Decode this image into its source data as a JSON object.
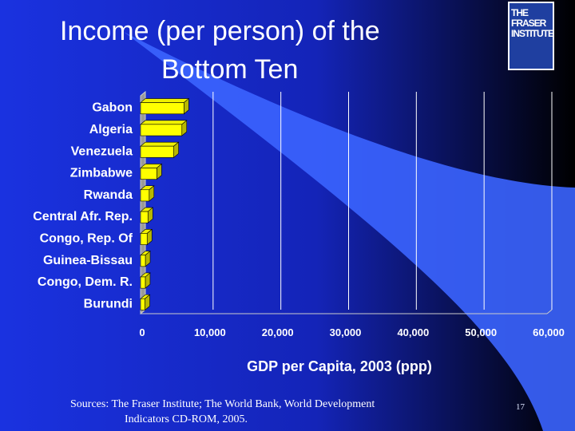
{
  "slide": {
    "title_line1": "Income (per person) of the",
    "title_line2": "Bottom Ten",
    "logo_text": "THE FRASER\nINSTITUTE",
    "source_line1": "Sources: The Fraser Institute; The World Bank, World Development",
    "source_line2": "Indicators CD-ROM, 2005.",
    "page_number": "17"
  },
  "colors": {
    "background_left": "#1a32e0",
    "background_right": "#000000",
    "swoosh": "#3b64ff",
    "bar_face": "#ffff00",
    "bar_top": "#f0f000",
    "bar_side": "#b8b800",
    "gridline": "#ffffff"
  },
  "chart_data": {
    "type": "bar",
    "orientation": "horizontal",
    "style": "3d",
    "categories": [
      "Gabon",
      "Algeria",
      "Venezuela",
      "Zimbabwe",
      "Rwanda",
      "Central Afr. Rep.",
      "Congo, Rep. Of",
      "Guinea-Bissau",
      "Congo, Dem. R.",
      "Burundi"
    ],
    "values": [
      6400,
      6100,
      4900,
      2400,
      1270,
      1090,
      970,
      710,
      700,
      650
    ],
    "title": "",
    "xlabel": "GDP per Capita, 2003 (ppp)",
    "ylabel": "",
    "xlim": [
      0,
      60000
    ],
    "xticks": [
      0,
      10000,
      20000,
      30000,
      40000,
      50000,
      60000
    ],
    "xtick_labels": [
      "0",
      "10,000",
      "20,000",
      "30,000",
      "40,000",
      "50,000",
      "60,000"
    ],
    "grid": "vertical",
    "legend": "none"
  }
}
